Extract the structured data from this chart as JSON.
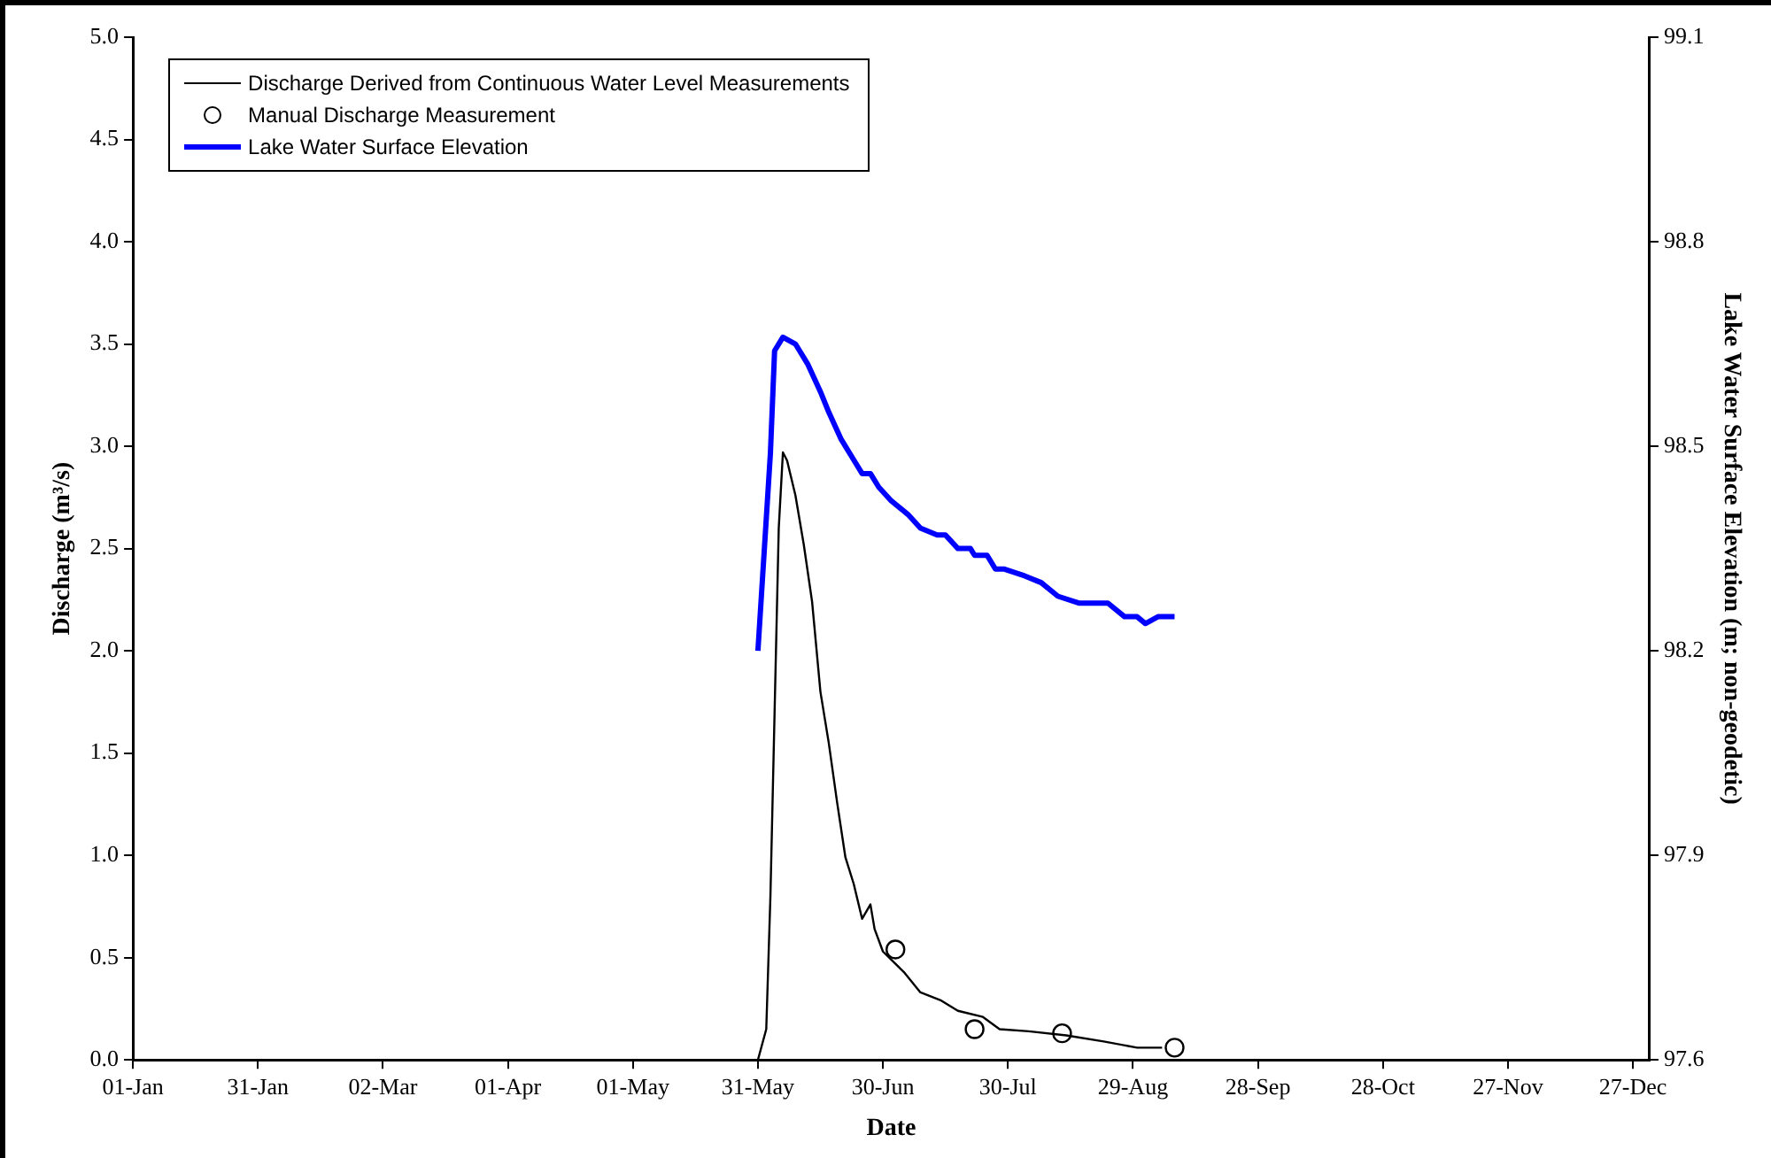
{
  "chart_data": {
    "type": "line",
    "xlabel": "Date",
    "ylabel": "Discharge (m³/s)",
    "y2label": "Lake Water Surface Elevation (m; non-geodetic)",
    "xlim": [
      "--01-01",
      "--12-31"
    ],
    "xticks": [
      {
        "value": "--01-01",
        "label": "01-Jan"
      },
      {
        "value": "--01-31",
        "label": "31-Jan"
      },
      {
        "value": "--03-02",
        "label": "02-Mar"
      },
      {
        "value": "--04-01",
        "label": "01-Apr"
      },
      {
        "value": "--05-01",
        "label": "01-May"
      },
      {
        "value": "--05-31",
        "label": "31-May"
      },
      {
        "value": "--06-30",
        "label": "30-Jun"
      },
      {
        "value": "--07-30",
        "label": "30-Jul"
      },
      {
        "value": "--08-29",
        "label": "29-Aug"
      },
      {
        "value": "--09-28",
        "label": "28-Sep"
      },
      {
        "value": "--10-28",
        "label": "28-Oct"
      },
      {
        "value": "--11-27",
        "label": "27-Nov"
      },
      {
        "value": "--12-27",
        "label": "27-Dec"
      }
    ],
    "ylim": [
      0,
      5
    ],
    "yticks": [
      {
        "value": 0,
        "label": "0.0"
      },
      {
        "value": 0.5,
        "label": "0.5"
      },
      {
        "value": 1,
        "label": "1.0"
      },
      {
        "value": 1.5,
        "label": "1.5"
      },
      {
        "value": 2,
        "label": "2.0"
      },
      {
        "value": 2.5,
        "label": "2.5"
      },
      {
        "value": 3,
        "label": "3.0"
      },
      {
        "value": 3.5,
        "label": "3.5"
      },
      {
        "value": 4,
        "label": "4.0"
      },
      {
        "value": 4.5,
        "label": "4.5"
      },
      {
        "value": 5,
        "label": "5.0"
      }
    ],
    "y2lim": [
      97.6,
      99.1
    ],
    "y2ticks": [
      97.6,
      97.9,
      98.2,
      98.5,
      98.8,
      99.1
    ],
    "legend": "top left",
    "series": [
      {
        "name": "Discharge Derived from Continuous Water Level Measurements",
        "color": "#000000",
        "marker": "none",
        "x": [
          "--05-31",
          "--06-02",
          "--06-03",
          "--06-04",
          "--06-05",
          "--06-06",
          "--06-07",
          "--06-09",
          "--06-11",
          "--06-13",
          "--06-15",
          "--06-17",
          "--06-19",
          "--06-21",
          "--06-23",
          "--06-25",
          "--06-27",
          "--06-28",
          "--06-30",
          "--07-05",
          "--07-09",
          "--07-14",
          "--07-18",
          "--07-24",
          "--07-28",
          "--08-04",
          "--08-13",
          "--08-22",
          "--08-30",
          "--09-05"
        ],
        "values": [
          0.0,
          0.15,
          0.8,
          1.7,
          2.6,
          2.97,
          2.93,
          2.76,
          2.52,
          2.24,
          1.8,
          1.55,
          1.26,
          0.99,
          0.86,
          0.69,
          0.76,
          0.64,
          0.53,
          0.43,
          0.33,
          0.29,
          0.24,
          0.21,
          0.15,
          0.14,
          0.12,
          0.09,
          0.06,
          0.06
        ]
      },
      {
        "name": "Manual Discharge Measurement",
        "type": "scatter",
        "color": "#000000",
        "marker": "circle",
        "x": [
          "--07-03",
          "--07-22",
          "--08-12",
          "--09-08"
        ],
        "values": [
          0.54,
          0.15,
          0.13,
          0.06
        ]
      },
      {
        "name": "Lake Water Surface Elevation",
        "axis": "y2",
        "color": "#0000ff",
        "marker": "none",
        "x": [
          "--05-31",
          "--06-03",
          "--06-04",
          "--06-06",
          "--06-09",
          "--06-12",
          "--06-15",
          "--06-17",
          "--06-20",
          "--06-23",
          "--06-25",
          "--06-27",
          "--06-29",
          "--07-02",
          "--07-06",
          "--07-09",
          "--07-13",
          "--07-15",
          "--07-18",
          "--07-21",
          "--07-22",
          "--07-25",
          "--07-27",
          "--07-29",
          "--08-03",
          "--08-07",
          "--08-11",
          "--08-16",
          "--08-19",
          "--08-23",
          "--08-27",
          "--08-30",
          "--09-01",
          "--09-04",
          "--09-08"
        ],
        "values": [
          98.2,
          98.49,
          98.64,
          98.66,
          98.65,
          98.62,
          98.58,
          98.55,
          98.51,
          98.48,
          98.46,
          98.46,
          98.44,
          98.42,
          98.4,
          98.38,
          98.37,
          98.37,
          98.35,
          98.35,
          98.34,
          98.34,
          98.32,
          98.32,
          98.31,
          98.3,
          98.28,
          98.27,
          98.27,
          98.27,
          98.25,
          98.25,
          98.24,
          98.25,
          98.25
        ]
      }
    ]
  }
}
